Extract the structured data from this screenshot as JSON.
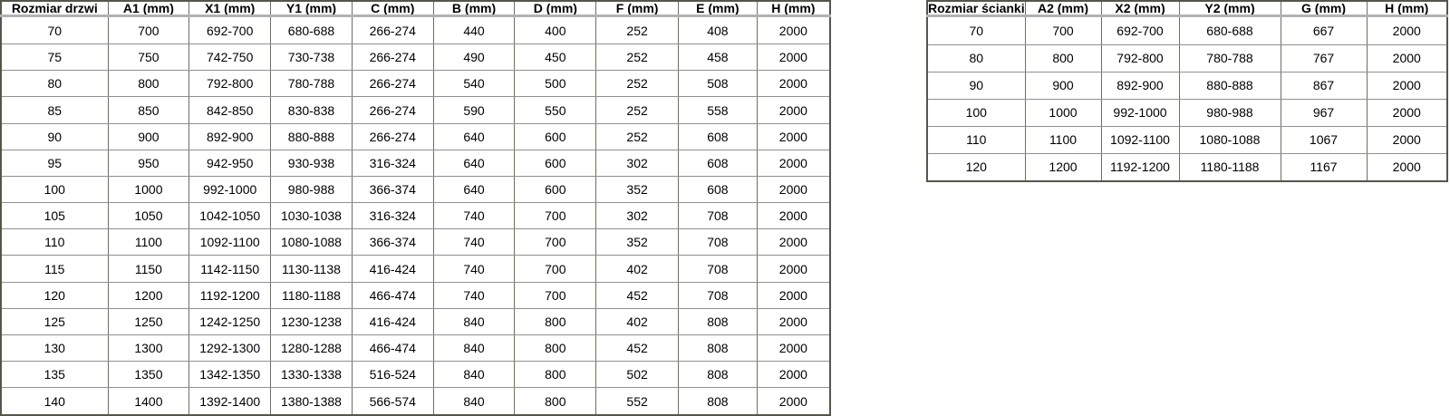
{
  "left_table": {
    "title": "Rozmiar drzwi",
    "headers": [
      "Rozmiar drzwi",
      "A1 (mm)",
      "X1 (mm)",
      "Y1 (mm)",
      "C (mm)",
      "B (mm)",
      "D (mm)",
      "F (mm)",
      "E (mm)",
      "H (mm)"
    ],
    "rows": [
      [
        "70",
        "700",
        "692-700",
        "680-688",
        "266-274",
        "440",
        "400",
        "252",
        "408",
        "2000"
      ],
      [
        "75",
        "750",
        "742-750",
        "730-738",
        "266-274",
        "490",
        "450",
        "252",
        "458",
        "2000"
      ],
      [
        "80",
        "800",
        "792-800",
        "780-788",
        "266-274",
        "540",
        "500",
        "252",
        "508",
        "2000"
      ],
      [
        "85",
        "850",
        "842-850",
        "830-838",
        "266-274",
        "590",
        "550",
        "252",
        "558",
        "2000"
      ],
      [
        "90",
        "900",
        "892-900",
        "880-888",
        "266-274",
        "640",
        "600",
        "252",
        "608",
        "2000"
      ],
      [
        "95",
        "950",
        "942-950",
        "930-938",
        "316-324",
        "640",
        "600",
        "302",
        "608",
        "2000"
      ],
      [
        "100",
        "1000",
        "992-1000",
        "980-988",
        "366-374",
        "640",
        "600",
        "352",
        "608",
        "2000"
      ],
      [
        "105",
        "1050",
        "1042-1050",
        "1030-1038",
        "316-324",
        "740",
        "700",
        "302",
        "708",
        "2000"
      ],
      [
        "110",
        "1100",
        "1092-1100",
        "1080-1088",
        "366-374",
        "740",
        "700",
        "352",
        "708",
        "2000"
      ],
      [
        "115",
        "1150",
        "1142-1150",
        "1130-1138",
        "416-424",
        "740",
        "700",
        "402",
        "708",
        "2000"
      ],
      [
        "120",
        "1200",
        "1192-1200",
        "1180-1188",
        "466-474",
        "740",
        "700",
        "452",
        "708",
        "2000"
      ],
      [
        "125",
        "1250",
        "1242-1250",
        "1230-1238",
        "416-424",
        "840",
        "800",
        "402",
        "808",
        "2000"
      ],
      [
        "130",
        "1300",
        "1292-1300",
        "1280-1288",
        "466-474",
        "840",
        "800",
        "452",
        "808",
        "2000"
      ],
      [
        "135",
        "1350",
        "1342-1350",
        "1330-1338",
        "516-524",
        "840",
        "800",
        "502",
        "808",
        "2000"
      ],
      [
        "140",
        "1400",
        "1392-1400",
        "1380-1388",
        "566-574",
        "840",
        "800",
        "552",
        "808",
        "2000"
      ]
    ]
  },
  "right_table": {
    "title": "Rozmiar ścianki",
    "headers": [
      "Rozmiar ścianki",
      "A2 (mm)",
      "X2 (mm)",
      "Y2 (mm)",
      "G (mm)",
      "H (mm)"
    ],
    "rows": [
      [
        "70",
        "700",
        "692-700",
        "680-688",
        "667",
        "2000"
      ],
      [
        "80",
        "800",
        "792-800",
        "780-788",
        "767",
        "2000"
      ],
      [
        "90",
        "900",
        "892-900",
        "880-888",
        "867",
        "2000"
      ],
      [
        "100",
        "1000",
        "992-1000",
        "980-988",
        "967",
        "2000"
      ],
      [
        "110",
        "1100",
        "1092-1100",
        "1080-1088",
        "1067",
        "2000"
      ],
      [
        "120",
        "1200",
        "1192-1200",
        "1180-1188",
        "1167",
        "2000"
      ]
    ]
  },
  "colors": {
    "outer_border": "#55564a",
    "vertical_border": "#6f7058",
    "row_border": "#909090",
    "header_divider": "#b2b2b2",
    "text": "#000000",
    "background": "#ffffff"
  }
}
